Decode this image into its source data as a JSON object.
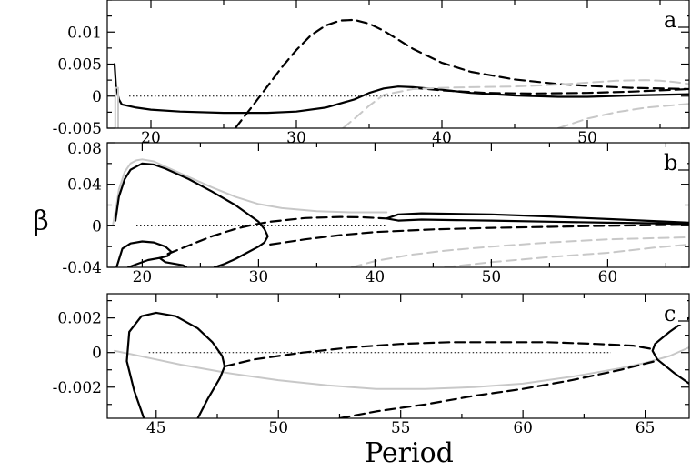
{
  "chart_data": {
    "type": "line",
    "ylabel": "β",
    "xlabel": "Period",
    "colors": {
      "main": "#000000",
      "faint": "#c8c8c8",
      "baseline": "#000000"
    },
    "panels": [
      {
        "label": "a",
        "xlim": [
          17,
          57
        ],
        "ylim": [
          -0.005,
          0.015
        ],
        "xticks": [
          20,
          30,
          40,
          50
        ],
        "xtick_labels": [
          "20",
          "30",
          "40",
          "50"
        ],
        "yticks": [
          -0.005,
          0,
          0.005,
          0.01
        ],
        "ytick_labels": [
          "-0.005",
          "0",
          "0.005",
          "0.01"
        ],
        "reference_line": {
          "y": 0,
          "x": [
            18.5,
            40
          ]
        },
        "series": [
          {
            "style": "solid",
            "color": "main",
            "x": [
              17.5,
              17.6,
              17.8,
              18,
              19,
              20,
              22,
              25,
              28,
              30,
              32,
              34,
              35,
              36,
              37,
              38,
              40,
              42,
              45,
              48,
              50,
              53,
              57
            ],
            "y": [
              0.005,
              0.0015,
              -0.0005,
              -0.0013,
              -0.0018,
              -0.0021,
              -0.0024,
              -0.0026,
              -0.0026,
              -0.0024,
              -0.0018,
              -0.0005,
              0.0005,
              0.0012,
              0.0015,
              0.0014,
              0.001,
              0.0005,
              0.0001,
              -0.0001,
              -0.0001,
              0.0001,
              0.0003
            ]
          },
          {
            "style": "dashed",
            "color": "main",
            "x": [
              25.8,
              27,
              28,
              29,
              30,
              31,
              32,
              33,
              34,
              35,
              36,
              37,
              38,
              40,
              42,
              45,
              48,
              50,
              53,
              57
            ],
            "y": [
              -0.005,
              -0.0015,
              0.0015,
              0.0045,
              0.0072,
              0.0095,
              0.011,
              0.0118,
              0.0119,
              0.0113,
              0.0102,
              0.0088,
              0.0074,
              0.0052,
              0.0038,
              0.0026,
              0.0019,
              0.0016,
              0.0013,
              0.0011
            ]
          },
          {
            "style": "dashed",
            "color": "main",
            "x": [
              38,
              40,
              43,
              46,
              50,
              53,
              57
            ],
            "y": [
              0.0013,
              0.0009,
              0.0005,
              0.0004,
              0.0005,
              0.0007,
              0.0011
            ]
          },
          {
            "style": "solid",
            "color": "faint",
            "x": [
              17.55,
              17.55,
              17.75,
              17.75
            ],
            "y": [
              -0.005,
              0.0013,
              0.0013,
              -0.005
            ]
          },
          {
            "style": "dashed",
            "color": "faint",
            "x": [
              33.2,
              34,
              35,
              36,
              38,
              40,
              42,
              45,
              48,
              50,
              52,
              54,
              55,
              56,
              57
            ],
            "y": [
              -0.005,
              -0.0035,
              -0.0015,
              0.0002,
              0.0011,
              0.0013,
              0.0014,
              0.0015,
              0.0018,
              0.0021,
              0.0024,
              0.0025,
              0.0024,
              0.0022,
              0.0019
            ]
          },
          {
            "style": "dashed",
            "color": "faint",
            "x": [
              48,
              50,
              52,
              54,
              56,
              57
            ],
            "y": [
              -0.005,
              -0.0035,
              -0.0025,
              -0.0018,
              -0.0014,
              -0.0012
            ]
          }
        ]
      },
      {
        "label": "b",
        "xlim": [
          17,
          67
        ],
        "ylim": [
          -0.04,
          0.08
        ],
        "xticks": [
          20,
          30,
          40,
          50,
          60
        ],
        "xtick_labels": [
          "20",
          "30",
          "40",
          "50",
          "60"
        ],
        "yticks": [
          -0.04,
          0,
          0.04,
          0.08
        ],
        "ytick_labels": [
          "-0.04",
          "0",
          "0.04",
          "0.08"
        ],
        "reference_line": {
          "y": 0,
          "x": [
            19.5,
            41
          ]
        },
        "series": [
          {
            "style": "solid",
            "color": "faint",
            "x": [
              17.5,
              17.8,
              18,
              18.5,
              19,
              19.5,
              20,
              21,
              22,
              24,
              26,
              28,
              30,
              32,
              35,
              38,
              41
            ],
            "y": [
              0.002,
              0.02,
              0.035,
              0.052,
              0.06,
              0.063,
              0.064,
              0.062,
              0.057,
              0.047,
              0.037,
              0.028,
              0.021,
              0.017,
              0.014,
              0.013,
              0.013
            ]
          },
          {
            "style": "solid",
            "color": "main",
            "x": [
              17.7,
              18,
              18.5,
              19,
              20,
              21,
              22,
              24,
              26,
              28,
              29,
              30,
              30.5,
              30.8,
              30.5,
              30,
              29,
              28,
              27,
              26.2
            ],
            "y": [
              0.005,
              0.028,
              0.045,
              0.054,
              0.06,
              0.059,
              0.055,
              0.045,
              0.033,
              0.02,
              0.012,
              0.004,
              -0.003,
              -0.01,
              -0.016,
              -0.02,
              -0.026,
              -0.032,
              -0.037,
              -0.04
            ]
          },
          {
            "style": "solid",
            "color": "main",
            "x": [
              17.8,
              18.3,
              19,
              20,
              21,
              22,
              22.5,
              22.2,
              21.5,
              20.5,
              19.5,
              18.8
            ],
            "y": [
              -0.04,
              -0.022,
              -0.017,
              -0.015,
              -0.016,
              -0.02,
              -0.025,
              -0.029,
              -0.031,
              -0.033,
              -0.037,
              -0.04
            ]
          },
          {
            "style": "solid",
            "color": "main",
            "x": [
              21.5,
              22,
              23.5,
              23.8
            ],
            "y": [
              -0.031,
              -0.035,
              -0.038,
              -0.04
            ]
          },
          {
            "style": "solid",
            "color": "main",
            "x": [
              41,
              42,
              44,
              47,
              50,
              55,
              60,
              67
            ],
            "y": [
              0.007,
              0.011,
              0.012,
              0.0115,
              0.011,
              0.009,
              0.0065,
              0.003
            ]
          },
          {
            "style": "solid",
            "color": "main",
            "x": [
              41,
              42,
              44,
              47,
              50,
              55,
              60,
              67
            ],
            "y": [
              0.007,
              0.005,
              0.006,
              0.0055,
              0.005,
              0.004,
              0.003,
              0.002
            ]
          },
          {
            "style": "dashed",
            "color": "main",
            "x": [
              22.2,
              24,
              26,
              28,
              29.5,
              31,
              34,
              37,
              39,
              41
            ],
            "y": [
              -0.027,
              -0.019,
              -0.01,
              -0.003,
              0.001,
              0.004,
              0.0075,
              0.0085,
              0.0082,
              0.007
            ]
          },
          {
            "style": "dashed",
            "color": "main",
            "x": [
              31,
              34,
              37,
              40,
              45,
              50,
              55,
              60,
              67
            ],
            "y": [
              -0.018,
              -0.013,
              -0.009,
              -0.006,
              -0.0035,
              -0.002,
              -0.001,
              0,
              0.001
            ]
          },
          {
            "style": "dashed",
            "color": "faint",
            "x": [
              38,
              40,
              43,
              46,
              50,
              55,
              60,
              67
            ],
            "y": [
              -0.04,
              -0.034,
              -0.028,
              -0.024,
              -0.02,
              -0.016,
              -0.013,
              -0.011
            ]
          },
          {
            "style": "dashed",
            "color": "faint",
            "x": [
              46,
              50,
              55,
              60,
              64,
              67
            ],
            "y": [
              -0.04,
              -0.035,
              -0.03,
              -0.026,
              -0.021,
              -0.018
            ]
          }
        ]
      },
      {
        "label": "c",
        "xlim": [
          43,
          66.8
        ],
        "ylim": [
          -0.0038,
          0.0034
        ],
        "xticks": [
          45,
          50,
          55,
          60,
          65
        ],
        "xtick_labels": [
          "45",
          "50",
          "55",
          "60",
          "65"
        ],
        "yticks": [
          -0.002,
          0,
          0.002
        ],
        "ytick_labels": [
          "-0.002",
          "0",
          "0.002"
        ],
        "reference_line": {
          "y": 0,
          "x": [
            44.7,
            63.6
          ]
        },
        "series": [
          {
            "style": "solid",
            "color": "faint",
            "x": [
              43.3,
              44,
              45,
              46,
              48,
              50,
              52,
              54,
              56,
              58,
              60,
              62,
              64,
              65,
              66,
              66.8
            ],
            "y": [
              0.0001,
              -0.0001,
              -0.0004,
              -0.0007,
              -0.0012,
              -0.0016,
              -0.0019,
              -0.0021,
              -0.0021,
              -0.002,
              -0.0018,
              -0.0014,
              -0.0009,
              -0.0006,
              -0.0002,
              0.0003
            ]
          },
          {
            "style": "solid",
            "color": "main",
            "x": [
              44.5,
              44.1,
              43.8,
              43.9,
              44.4,
              45,
              45.8,
              46.7,
              47.3,
              47.7,
              47.8,
              47.6,
              47.1,
              46.7
            ],
            "y": [
              -0.0038,
              -0.0022,
              -0.0005,
              0.0012,
              0.0021,
              0.0023,
              0.0021,
              0.0014,
              0.0006,
              -0.0002,
              -0.0008,
              -0.0015,
              -0.0027,
              -0.0038
            ]
          },
          {
            "style": "dashed",
            "color": "main",
            "x": [
              47.8,
              49,
              51,
              53,
              55,
              57,
              59,
              61,
              63,
              64.5,
              65.3
            ],
            "y": [
              -0.0008,
              -0.0004,
              0,
              0.0003,
              0.0005,
              0.0006,
              0.0006,
              0.0006,
              0.0005,
              0.0004,
              0.0002
            ]
          },
          {
            "style": "dashed",
            "color": "main",
            "x": [
              52.5,
              54,
              56,
              58,
              60,
              62,
              64,
              65.4
            ],
            "y": [
              -0.0038,
              -0.0034,
              -0.003,
              -0.0025,
              -0.0021,
              -0.0016,
              -0.001,
              -0.0005
            ]
          },
          {
            "style": "solid",
            "color": "main",
            "x": [
              66.8,
              66,
              65.4,
              65.3,
              65.5,
              66.2,
              66.8
            ],
            "y": [
              0.002,
              0.0012,
              0.0005,
              0.0001,
              -0.0004,
              -0.0012,
              -0.0018
            ]
          }
        ]
      }
    ]
  }
}
